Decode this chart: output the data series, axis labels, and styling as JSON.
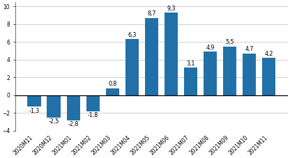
{
  "categories": [
    "2020M11",
    "2020M12",
    "2021M01",
    "2021M02",
    "2021M03",
    "2021M04",
    "2021M05",
    "2021M06",
    "2021M07",
    "2021M08",
    "2021M09",
    "2021M10",
    "2021M11"
  ],
  "values": [
    -1.3,
    -2.5,
    -2.8,
    -1.8,
    0.8,
    6.3,
    8.7,
    9.3,
    3.1,
    4.9,
    5.5,
    4.7,
    4.2
  ],
  "bar_color": "#2171A8",
  "ylim": [
    -4,
    10.5
  ],
  "yticks": [
    -4,
    -2,
    0,
    2,
    4,
    6,
    8,
    10
  ],
  "background_color": "#ffffff",
  "grid_color": "#c8c8c8",
  "label_fontsize": 5.8,
  "tick_fontsize": 5.5
}
